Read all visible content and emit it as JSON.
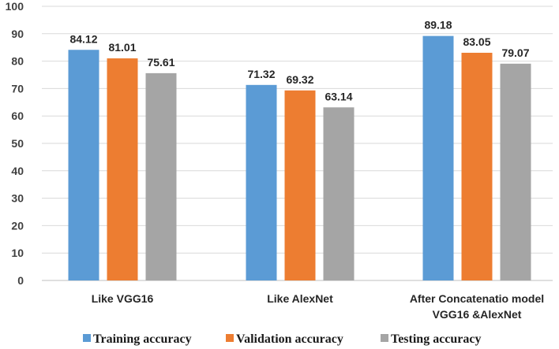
{
  "chart_data": {
    "type": "bar",
    "title": "",
    "xlabel": "",
    "ylabel": "",
    "ylim": [
      0,
      100
    ],
    "yticks": [
      0,
      10,
      20,
      30,
      40,
      50,
      60,
      70,
      80,
      90,
      100
    ],
    "grid": true,
    "legend_position": "bottom",
    "categories": [
      [
        "Like VGG16"
      ],
      [
        "Like AlexNet"
      ],
      [
        "After Concatenatio model",
        "VGG16 &AlexNet"
      ]
    ],
    "series": [
      {
        "name": "Training accuracy",
        "color": "#5b9bd5",
        "values": [
          84.12,
          71.32,
          89.18
        ]
      },
      {
        "name": "Validation accuracy",
        "color": "#ed7d31",
        "values": [
          81.01,
          69.32,
          83.05
        ]
      },
      {
        "name": "Testing accuracy",
        "color": "#a5a5a5",
        "values": [
          75.61,
          63.14,
          79.07
        ]
      }
    ],
    "data_labels": [
      [
        "84.12",
        "81.01",
        "75.61"
      ],
      [
        "71.32",
        "69.32",
        "63.14"
      ],
      [
        "89.18",
        "83.05",
        "79.07"
      ]
    ]
  }
}
